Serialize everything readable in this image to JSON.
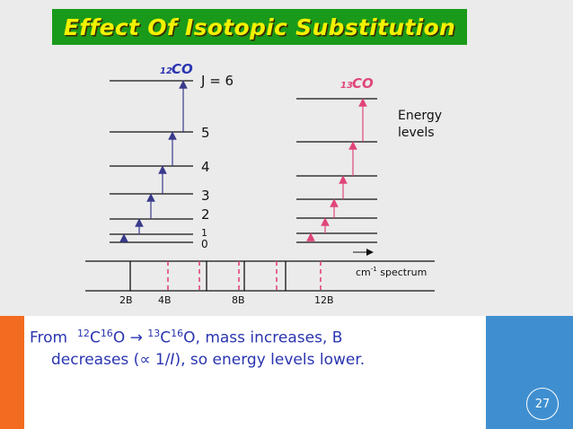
{
  "title": "Effect Of Isotopic Substitution",
  "diagram": {
    "left_molecule": {
      "mass_number": "12",
      "formula": "CO"
    },
    "right_molecule": {
      "mass_number": "13",
      "formula": "CO"
    },
    "level_labels": [
      "0",
      "1",
      "2",
      "3",
      "4",
      "5",
      "J = 6"
    ],
    "energy_label_line1": "Energy",
    "energy_label_line2": "levels",
    "spectrum_label_prefix": "cm",
    "spectrum_label_sup": "-1",
    "spectrum_label_suffix": " spectrum",
    "axis_labels": [
      "2B",
      "4B",
      "8B",
      "12B"
    ]
  },
  "caption": {
    "from": "From",
    "c12_sup": "12",
    "c12_rest": "C",
    "o16_sup": "16",
    "o16_rest": "O",
    "arrow": "→",
    "c13_sup": "13",
    "c13_rest": "C",
    "o16b_sup": "16",
    "o16b_rest": "O, mass increases, B",
    "line2_a": "decreases (",
    "propto": "∝",
    "line2_b": " 1/",
    "line2_i": "I",
    "line2_c": "), so energy levels lower."
  },
  "page_number": "27",
  "colors": {
    "title_bg": "#1a9a1a",
    "title_text": "#f2f200",
    "left_arrows": "#3a3a8c",
    "right_arrows": "#e0457b",
    "caption_text": "#2a35b0",
    "accent_orange": "#f26b21",
    "accent_blue": "#3f8fd0"
  }
}
